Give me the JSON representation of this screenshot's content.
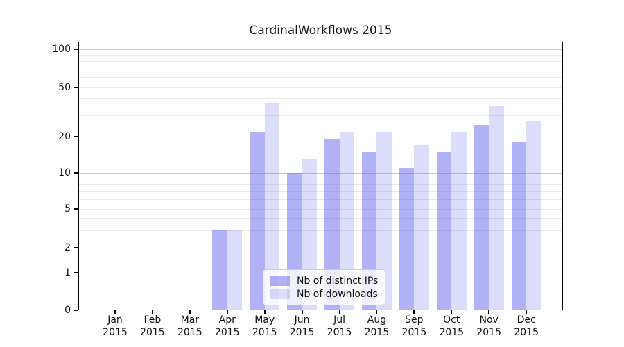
{
  "chart_data": {
    "type": "bar",
    "title": "CardinalWorkflows 2015",
    "categories": [
      "Jan",
      "Feb",
      "Mar",
      "Apr",
      "May",
      "Jun",
      "Jul",
      "Aug",
      "Sep",
      "Oct",
      "Nov",
      "Dec"
    ],
    "category_year": "2015",
    "series": [
      {
        "name": "Nb of distinct IPs",
        "color": "rgba(82,82,235,0.45)",
        "values": [
          0,
          0,
          0,
          3,
          22,
          10,
          19,
          15,
          11,
          15,
          25,
          18
        ]
      },
      {
        "name": "Nb of downloads",
        "color": "rgba(82,82,235,0.2)",
        "values": [
          0,
          0,
          0,
          3,
          37,
          13,
          22,
          22,
          17,
          22,
          35,
          27
        ]
      }
    ],
    "xlabel": "",
    "ylabel": "",
    "ylim": [
      0,
      100
    ],
    "y_axis": {
      "scale": "log-like (0 at baseline)",
      "tick_values": [
        0,
        1,
        2,
        5,
        10,
        20,
        50,
        100
      ],
      "minor_gridline_values": [
        2,
        3,
        4,
        5,
        6,
        7,
        8,
        9,
        20,
        30,
        40,
        50,
        60,
        70,
        80,
        90
      ],
      "major_gridline_values": [
        1,
        10,
        100
      ]
    },
    "grid": "horizontal minor+major, on",
    "legend": {
      "position": "lower center",
      "entries": [
        "Nb of distinct IPs",
        "Nb of downloads"
      ]
    }
  },
  "colors": {
    "bar_distinct_ips": "rgba(82,82,235,0.45)",
    "bar_downloads": "rgba(82,82,235,0.2)",
    "grid_minor": "#e9e9e9",
    "grid_major": "#c9c9c9",
    "axis": "#000000",
    "background": "#ffffff"
  }
}
